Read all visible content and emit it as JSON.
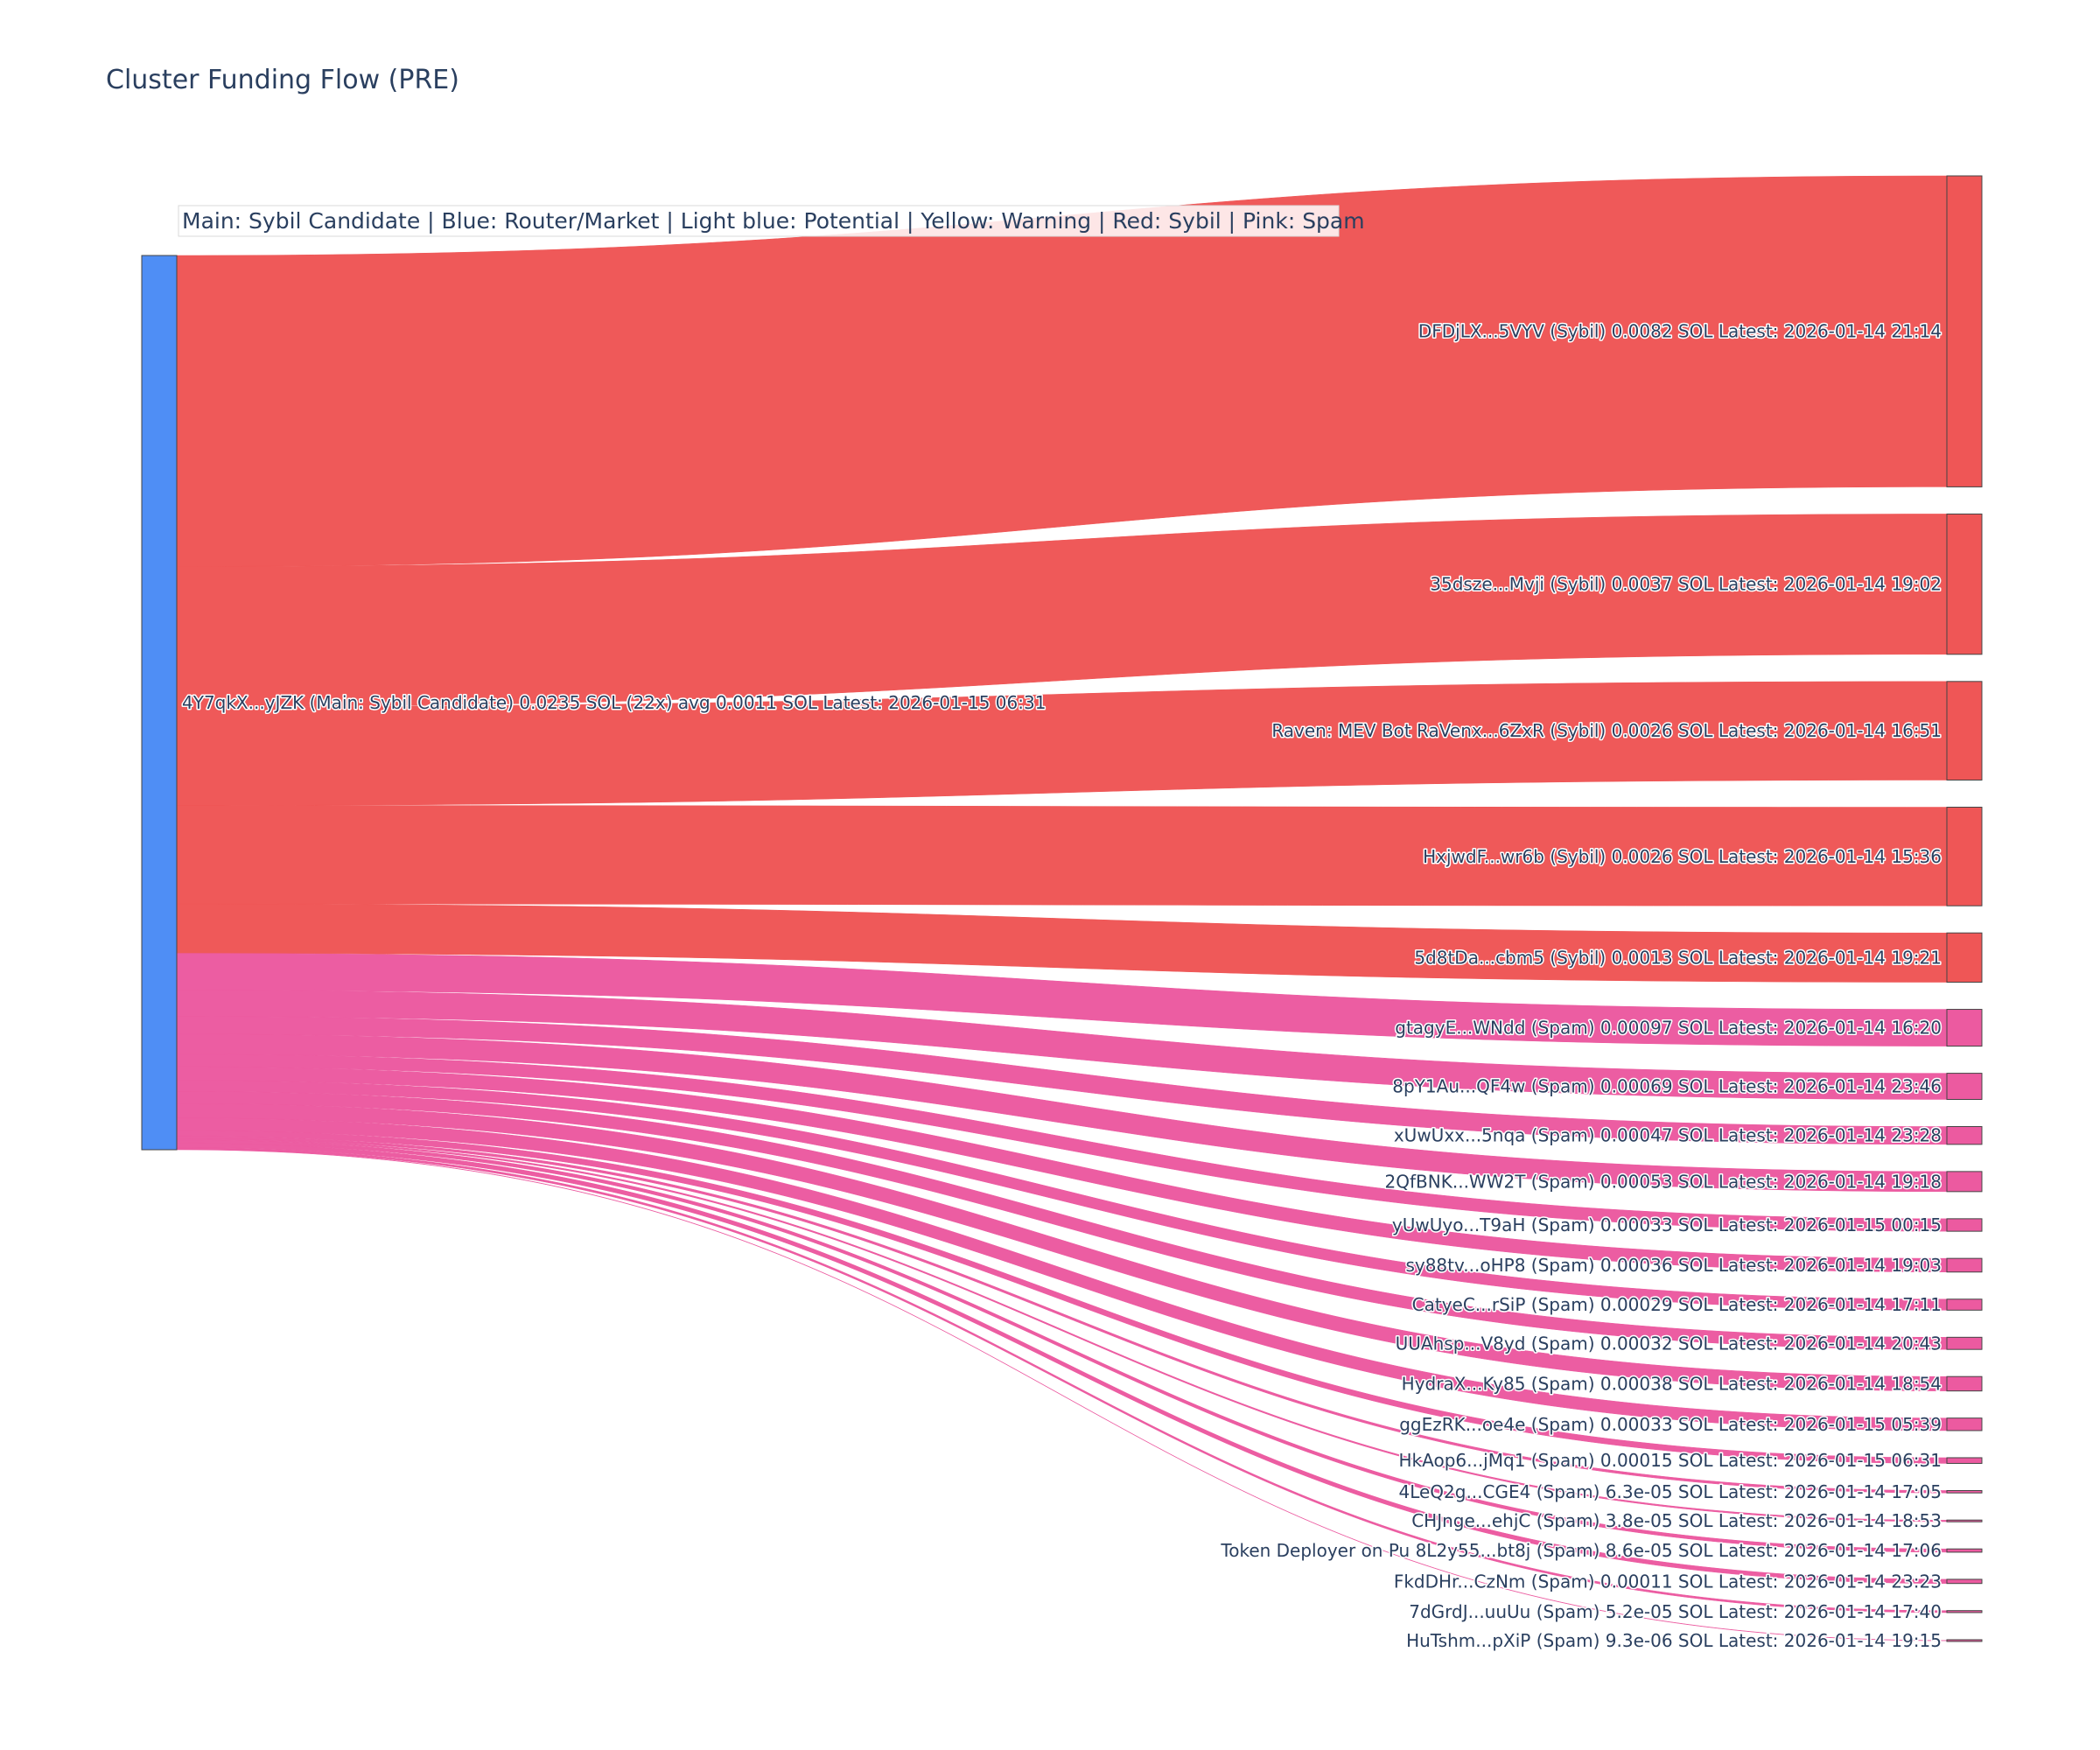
{
  "chart_data": {
    "type": "sankey",
    "title": "Cluster Funding Flow (PRE)",
    "legend_note": "Main: Sybil Candidate  |  Blue: Router/Market | Light blue: Potential | Yellow: Warning | Red: Sybil | Pink: Spam",
    "colors": {
      "main": "#4f8ef5",
      "sybil": "#ef5656",
      "spam": "#ec5aa0"
    },
    "source": {
      "label": "4Y7qkX...yJZK (Main: Sybil Candidate) 0.0235 SOL (22x) avg 0.0011 SOL Latest: 2026-01-15 06:31",
      "category": "main"
    },
    "targets": [
      {
        "label": "DFDjLX...5VYV (Sybil) 0.0082 SOL Latest: 2026-01-14 21:14",
        "value": 0.0082,
        "category": "sybil"
      },
      {
        "label": "35dsze...Mvji (Sybil) 0.0037 SOL Latest: 2026-01-14 19:02",
        "value": 0.0037,
        "category": "sybil"
      },
      {
        "label": "Raven: MEV Bot RaVenx...6ZxR (Sybil) 0.0026 SOL Latest: 2026-01-14 16:51",
        "value": 0.0026,
        "category": "sybil"
      },
      {
        "label": "HxjwdF...wr6b (Sybil) 0.0026 SOL Latest: 2026-01-14 15:36",
        "value": 0.0026,
        "category": "sybil"
      },
      {
        "label": "5d8tDa...cbm5 (Sybil) 0.0013 SOL Latest: 2026-01-14 19:21",
        "value": 0.0013,
        "category": "sybil"
      },
      {
        "label": "gtagyE...WNdd (Spam) 0.00097 SOL Latest: 2026-01-14 16:20",
        "value": 0.00097,
        "category": "spam"
      },
      {
        "label": "8pY1Au...QF4w (Spam) 0.00069 SOL Latest: 2026-01-14 23:46",
        "value": 0.00069,
        "category": "spam"
      },
      {
        "label": "xUwUxx...5nqa (Spam) 0.00047 SOL Latest: 2026-01-14 23:28",
        "value": 0.00047,
        "category": "spam"
      },
      {
        "label": "2QfBNK...WW2T (Spam) 0.00053 SOL Latest: 2026-01-14 19:18",
        "value": 0.00053,
        "category": "spam"
      },
      {
        "label": "yUwUyo...T9aH (Spam) 0.00033 SOL Latest: 2026-01-15 00:15",
        "value": 0.00033,
        "category": "spam"
      },
      {
        "label": "sy88tv...oHP8 (Spam) 0.00036 SOL Latest: 2026-01-14 19:03",
        "value": 0.00036,
        "category": "spam"
      },
      {
        "label": "CatyeC...rSiP (Spam) 0.00029 SOL Latest: 2026-01-14 17:11",
        "value": 0.00029,
        "category": "spam"
      },
      {
        "label": "UUAhsp...V8yd (Spam) 0.00032 SOL Latest: 2026-01-14 20:43",
        "value": 0.00032,
        "category": "spam"
      },
      {
        "label": "HydraX...Ky85 (Spam) 0.00038 SOL Latest: 2026-01-14 18:54",
        "value": 0.00038,
        "category": "spam"
      },
      {
        "label": "ggEzRK...oe4e (Spam) 0.00033 SOL Latest: 2026-01-15 05:39",
        "value": 0.00033,
        "category": "spam"
      },
      {
        "label": "HkAop6...jMq1 (Spam) 0.00015 SOL Latest: 2026-01-15 06:31",
        "value": 0.00015,
        "category": "spam"
      },
      {
        "label": "4LeQ2g...CGE4 (Spam) 6.3e-05 SOL Latest: 2026-01-14 17:05",
        "value": 6.3e-05,
        "category": "spam"
      },
      {
        "label": "CHJnge...ehjC (Spam) 3.8e-05 SOL Latest: 2026-01-14 18:53",
        "value": 3.8e-05,
        "category": "spam"
      },
      {
        "label": "Token Deployer on Pu 8L2y55...bt8j (Spam) 8.6e-05 SOL Latest: 2026-01-14 17:06",
        "value": 8.6e-05,
        "category": "spam"
      },
      {
        "label": "FkdDHr...CzNm (Spam) 0.00011 SOL Latest: 2026-01-14 23:23",
        "value": 0.00011,
        "category": "spam"
      },
      {
        "label": "7dGrdJ...uuUu (Spam) 5.2e-05 SOL Latest: 2026-01-14 17:40",
        "value": 5.2e-05,
        "category": "spam"
      },
      {
        "label": "HuTshm...pXiP (Spam) 9.3e-06 SOL Latest: 2026-01-14 19:15",
        "value": 9.3e-06,
        "category": "spam"
      }
    ]
  }
}
